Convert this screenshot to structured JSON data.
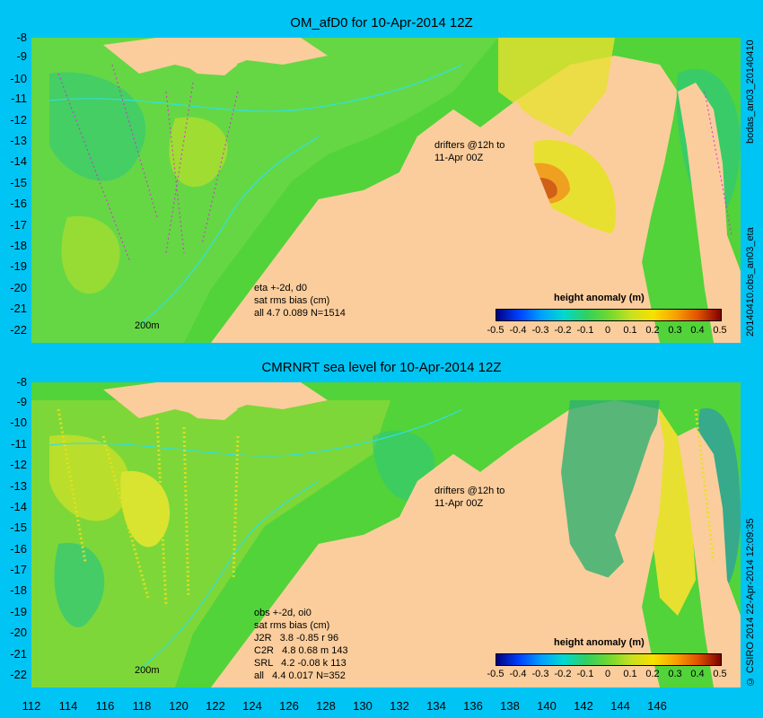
{
  "top": {
    "title": "OM_afD0 for 10-Apr-2014 12Z",
    "drifters": "drifters @12h to\n11-Apr 00Z",
    "stats": "eta +-2d, d0\nsat rms bias (cm)\nall 4.7 0.089 N=1514",
    "scale": "200m",
    "colorbar_title": "height anomaly (m)",
    "side_label": "20140410.obs_an03_eta",
    "side_label_top": "bodas_an03_20140410"
  },
  "bottom": {
    "title": "CMRNRT sea level  for 10-Apr-2014 12Z",
    "drifters": "drifters @12h to\n11-Apr 00Z",
    "stats": "obs +-2d, oi0\nsat rms bias (cm)\nJ2R   3.8 -0.85 r 96\nC2R   4.8 0.68 m 143\nSRL   4.2 -0.08 k 113\nall   4.4 0.017 N=352",
    "scale": "200m",
    "colorbar_title": "height anomaly (m)",
    "side_label": "© CSIRO 2014  22-Apr-2014 12:09:35"
  },
  "y_ticks": [
    "-8",
    "-9",
    "-10",
    "-11",
    "-12",
    "-13",
    "-14",
    "-15",
    "-16",
    "-17",
    "-18",
    "-19",
    "-20",
    "-21",
    "-22"
  ],
  "x_ticks": [
    "112",
    "114",
    "116",
    "118",
    "120",
    "122",
    "124",
    "126",
    "128",
    "130",
    "132",
    "134",
    "136",
    "138",
    "140",
    "142",
    "144",
    "146"
  ],
  "colorbar_ticks": [
    "-0.5",
    "-0.4",
    "-0.3",
    "-0.2",
    "-0.1",
    "0",
    "0.1",
    "0.2",
    "0.3",
    "0.4",
    "0.5"
  ],
  "colors": {
    "background": "#00c4f4",
    "land": "#fbcd9c",
    "ocean": "#52d33a",
    "drifter": "#e020e0",
    "isobath": "#30e0e0"
  }
}
